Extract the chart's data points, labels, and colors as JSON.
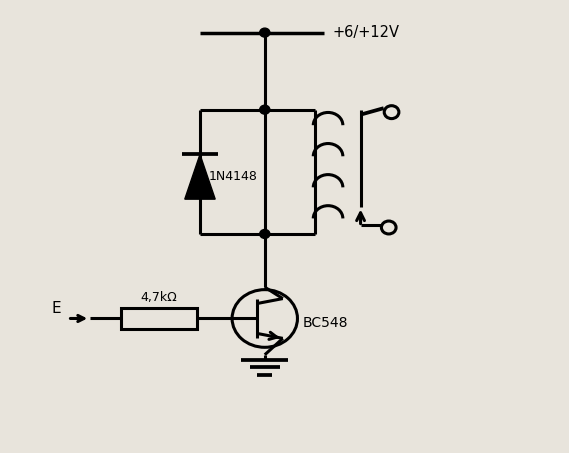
{
  "bg_color": "#e8e4dc",
  "line_color": "#000000",
  "line_width": 2.2,
  "vcc_label": "+6/+12V",
  "diode_label": "1N4148",
  "resistor_label": "4,7kΩ",
  "transistor_label": "BC548",
  "input_label": "E",
  "fig_width": 5.69,
  "fig_height": 4.53
}
